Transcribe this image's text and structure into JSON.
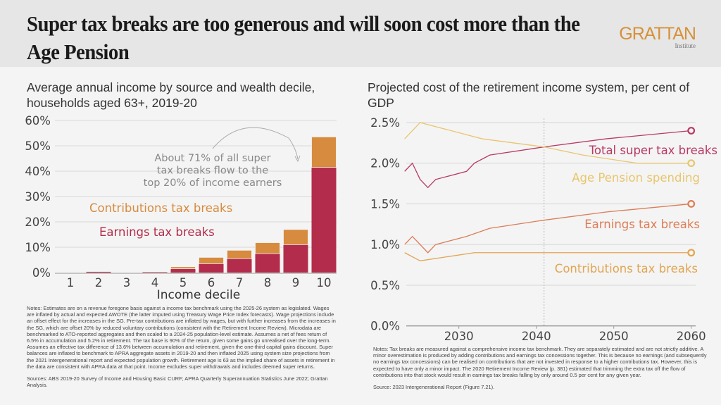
{
  "header": {
    "title": "Super tax breaks are too generous and will soon cost more than the Age Pension",
    "logo_main": "GRATTAN",
    "logo_sub": "Institute"
  },
  "colors": {
    "earnings": "#b32c4b",
    "contributions": "#d68b3e",
    "total_line": "#b83a62",
    "age_pension_line": "#e8c66c",
    "earnings_line": "#dc7d55",
    "contributions_line": "#e2a552"
  },
  "left": {
    "title": "Average annual income by source and wealth decile, households aged 63+, 2019-20",
    "notes": "Notes:  Estimates are on a revenue foregone basis against a income tax benchmark using the 2025-26 system as legislated. Wages are inflated by actual and expected AWOTE (the latter imputed using Treasury Wage Price Index forecasts). Wage projections include an offset effect for the increases in the SG. Pre-tax contributions are inflated by wages, but with further increases from the increases in the SG, which are offset 20% by reduced voluntary contributions (consistent with the Retirement Income Review). Microdata are benchmarked to ATO-reported aggregates and then scaled to a 2024-25 population-level estimate. Assumes a net of fees return of 6.5% in accumulation and 5.2% in retirement. The tax base is 90% of the return, given some gains go unrealised over the long-term. Assumes an effective tax difference of 13.6% between accumulation and retirement, given the one-third capital gains discount. Super balances are inflated to benchmark to APRA aggregate assets in 2019-20 and then inflated 2025 using system size projections from the 2021 Intergenerational report and expected population growth. Retirement age is 63 as the implied share of assets in retirement in the data are consistent with APRA data at that point. Income excludes super withdrawals and includes deemed super returns.",
    "sources": "Sources:  ABS 2019-20 Survey of Income and Housing Basic CURF; APRA Quarterly Superannuation Statistics June 2022; Grattan Analysis."
  },
  "right": {
    "title": "Projected cost of the retirement income system, per cent of GDP",
    "notes": "Notes: Tax breaks are measured against a comprehensive income tax benchmark. They are separately estimated and are not strictly additive. A minor overestimation is produced by adding contributions and earnings tax concessions together. This is because no earnings (and subsequently no earnings tax concessions) can be realised on contributions that are not invested in response to a higher contributions tax. However, this is expected to have only a minor impact. The 2020 Retirement Income Review (p. 381) estimated that trimming the extra tax off the flow of contributions into that stock would result in earnings tax breaks falling by only around 0.5 per cent for any given year.",
    "source": "Source: 2023 Intergenerational Report (Figure 7.21)."
  },
  "chart_data": [
    {
      "type": "bar",
      "stacked": true,
      "title": "Average annual income by source and wealth decile, households aged 63+, 2019-20",
      "xlabel": "Income decile",
      "ylabel": "",
      "categories": [
        "1",
        "2",
        "3",
        "4",
        "5",
        "6",
        "7",
        "8",
        "9",
        "10"
      ],
      "ylim": [
        0,
        60
      ],
      "yticks": [
        "0%",
        "10%",
        "20%",
        "30%",
        "40%",
        "50%",
        "60%"
      ],
      "grid": true,
      "series": [
        {
          "name": "Earnings tax breaks",
          "values": [
            0,
            0.3,
            0,
            0.3,
            1.5,
            3.5,
            5.5,
            7.5,
            11,
            41.5
          ]
        },
        {
          "name": "Contributions tax breaks",
          "values": [
            0,
            0,
            0,
            0.2,
            0.8,
            2.5,
            3.3,
            4.3,
            6,
            12
          ]
        }
      ],
      "annotation": [
        "About 71% of all super",
        "tax breaks flow to the",
        "top 20% of income earners"
      ]
    },
    {
      "type": "line",
      "title": "Projected cost of the retirement income system, per cent of GDP",
      "xlim": [
        2023,
        2061
      ],
      "ylim": [
        0,
        2.5
      ],
      "xticks": [
        "2030",
        "2040",
        "2050",
        "2060"
      ],
      "yticks": [
        "0.0%",
        "0.5%",
        "1.0%",
        "1.5%",
        "2.0%",
        "2.5%"
      ],
      "grid": true,
      "reference_year": 2041,
      "series": [
        {
          "name": "Total super tax breaks",
          "x": [
            2023,
            2024,
            2025,
            2026,
            2027,
            2031,
            2032,
            2034,
            2041,
            2049,
            2060
          ],
          "y": [
            1.9,
            2.0,
            1.8,
            1.7,
            1.8,
            1.9,
            2.0,
            2.1,
            2.2,
            2.3,
            2.4
          ]
        },
        {
          "name": "Age Pension spending",
          "x": [
            2023,
            2025,
            2033,
            2041,
            2046,
            2053,
            2060
          ],
          "y": [
            2.3,
            2.5,
            2.3,
            2.2,
            2.1,
            2.0,
            2.0
          ]
        },
        {
          "name": "Earnings tax breaks",
          "x": [
            2023,
            2024,
            2026,
            2027,
            2031,
            2034,
            2041,
            2049,
            2060
          ],
          "y": [
            1.0,
            1.1,
            0.9,
            1.0,
            1.1,
            1.2,
            1.3,
            1.4,
            1.5
          ]
        },
        {
          "name": "Contributions tax breaks",
          "x": [
            2023,
            2025,
            2032,
            2060
          ],
          "y": [
            0.9,
            0.8,
            0.9,
            0.9
          ]
        }
      ]
    }
  ]
}
